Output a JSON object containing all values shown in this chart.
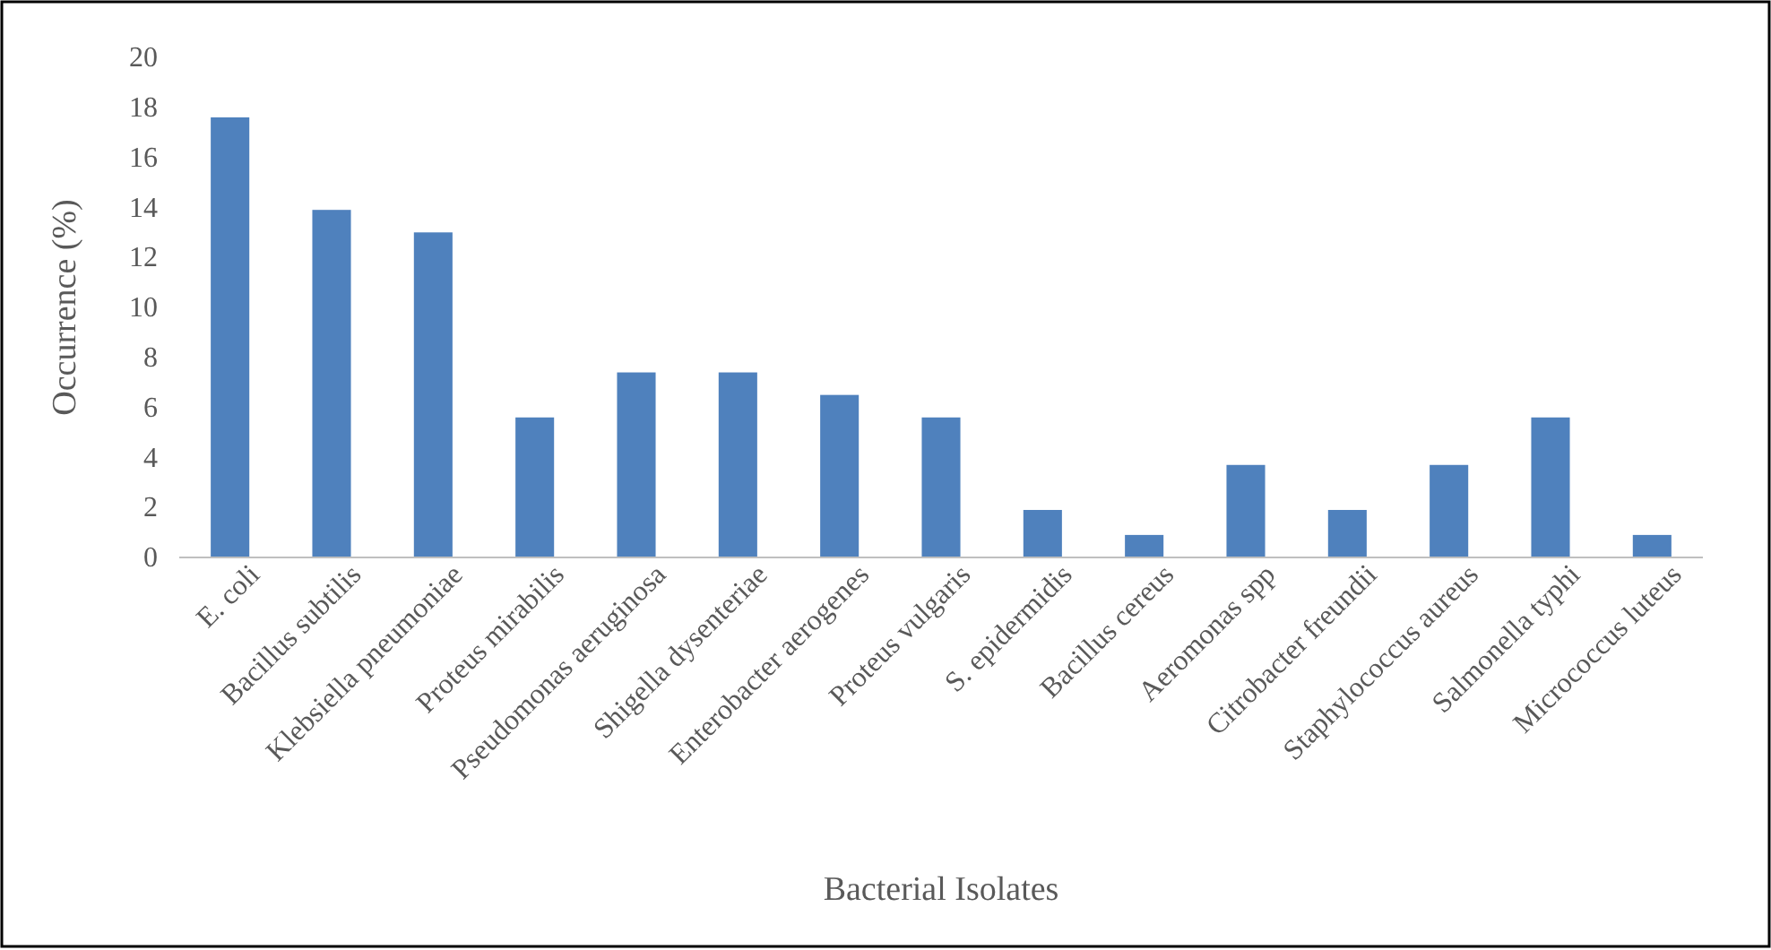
{
  "chart_data": {
    "type": "bar",
    "xlabel": "Bacterial Isolates",
    "ylabel": "Occurrence (%)",
    "categories": [
      "E. coli",
      "Bacillus subtilis",
      "Klebsiella pneumoniae",
      "Proteus mirabilis",
      "Pseudomonas aeruginosa",
      "Shigella dysenteriae",
      "Enterobacter aerogenes",
      "Proteus vulgaris",
      "S. epidermidis",
      "Bacillus cereus",
      "Aeromonas spp",
      "Citrobacter freundii",
      "Staphylococcus aureus",
      "Salmonella typhi",
      "Micrococcus luteus"
    ],
    "values": [
      17.6,
      13.9,
      13.0,
      5.6,
      7.4,
      7.4,
      6.5,
      5.6,
      1.9,
      0.9,
      3.7,
      1.9,
      3.7,
      5.6,
      0.9
    ],
    "color": "#4f81bd",
    "ylim": [
      0,
      20
    ],
    "yticks": [
      0,
      2,
      4,
      6,
      8,
      10,
      12,
      14,
      16,
      18,
      20
    ],
    "grid": false
  }
}
